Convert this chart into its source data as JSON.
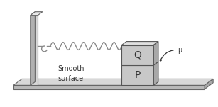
{
  "background_color": "#ffffff",
  "wall_face_color": "#d8d8d8",
  "wall_side_color": "#b0b0b0",
  "wall_top_color": "#e8e8e8",
  "wall_edge_color": "#666666",
  "floor_top_color": "#d8d8d8",
  "floor_front_color": "#b8b8b8",
  "floor_edge_color": "#666666",
  "block_face_color": "#c8c8c8",
  "block_top_color": "#e0e0e0",
  "block_side_color": "#a8a8a8",
  "block_edge_color": "#555555",
  "spring_color": "#888888",
  "text_color": "#333333",
  "label_Q": "Q",
  "label_P": "P",
  "label_mu": "μ",
  "label_surface": "Smooth\nsurface",
  "figsize": [
    3.07,
    1.51
  ],
  "dpi": 100
}
